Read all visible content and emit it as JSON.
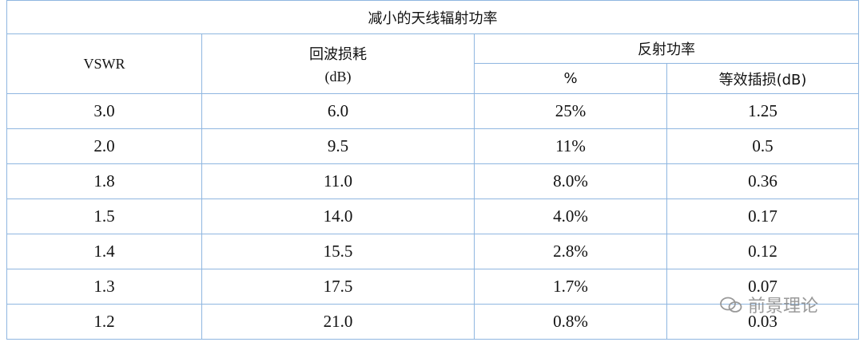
{
  "title": "减小的天线辐射功率",
  "header": {
    "vswr": "VSWR",
    "return_loss": "回波损耗",
    "return_loss_unit": "(dB)",
    "reflected_power": "反射功率",
    "percent": "%",
    "insertion_loss": "等效插损(dB)"
  },
  "rows": [
    [
      "3.0",
      "6.0",
      "25%",
      "1.25"
    ],
    [
      "2.0",
      "9.5",
      "11%",
      "0.5"
    ],
    [
      "1.8",
      "11.0",
      "8.0%",
      "0.36"
    ],
    [
      "1.5",
      "14.0",
      "4.0%",
      "0.17"
    ],
    [
      "1.4",
      "15.5",
      "2.8%",
      "0.12"
    ],
    [
      "1.3",
      "17.5",
      "1.7%",
      "0.07"
    ],
    [
      "1.2",
      "21.0",
      "0.8%",
      "0.03"
    ]
  ],
  "watermark": "前景理论"
}
